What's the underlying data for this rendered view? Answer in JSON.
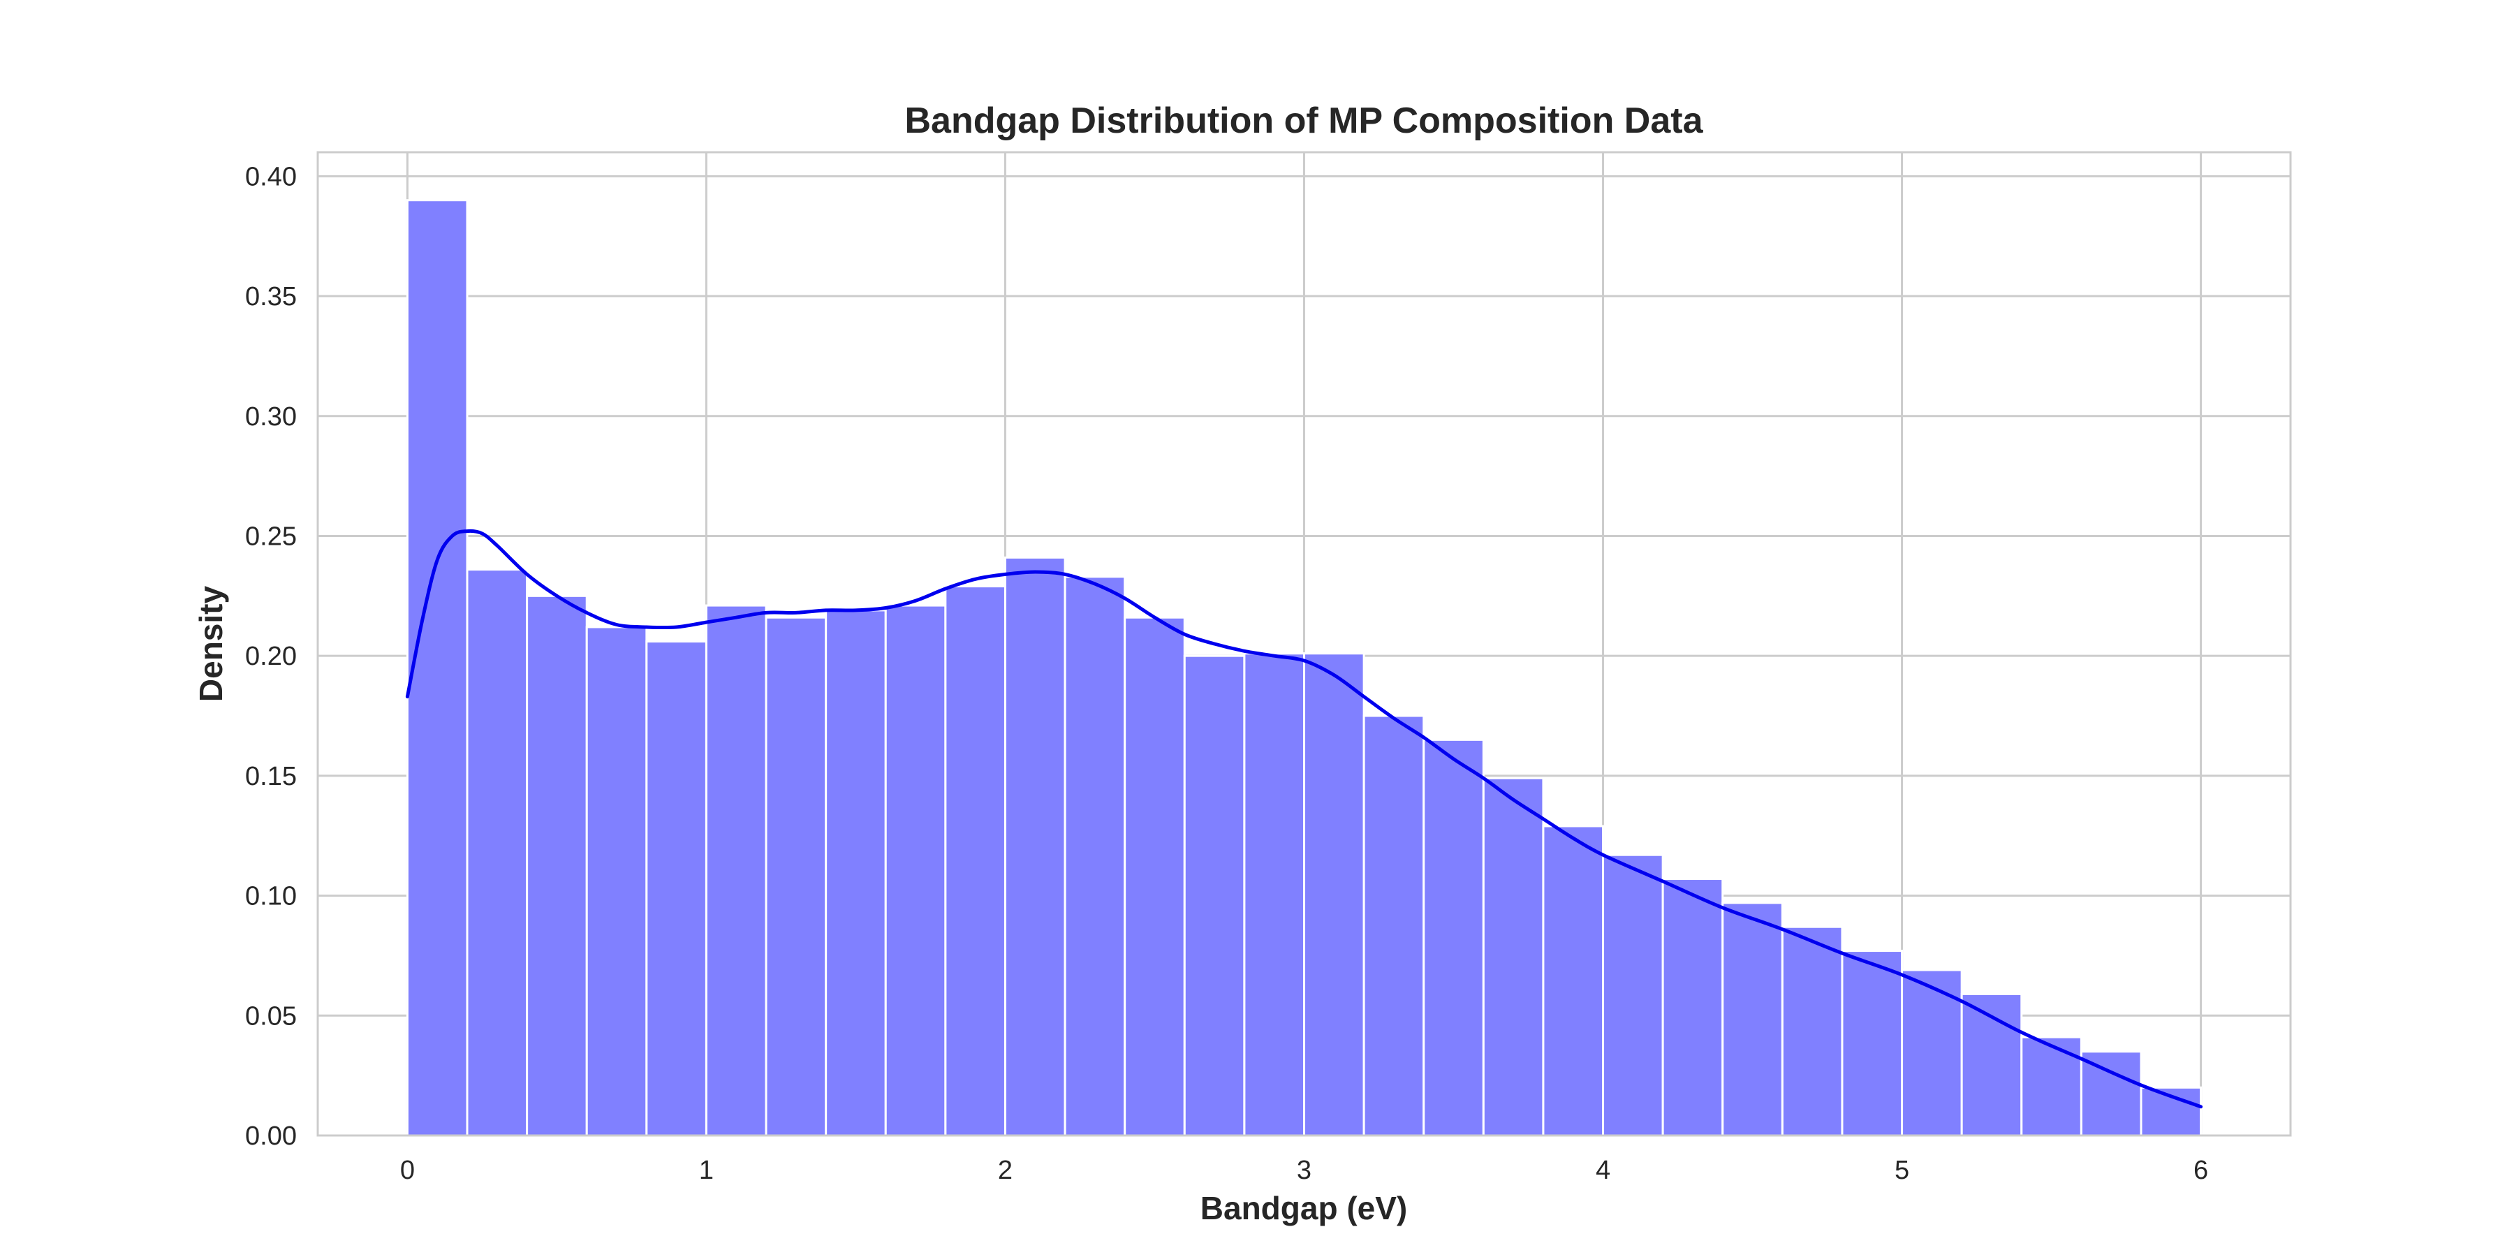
{
  "chart_data": {
    "type": "histogram",
    "title": "Bandgap Distribution of MP Composition Data",
    "xlabel": "Bandgap (eV)",
    "ylabel": "Density",
    "xlim": [
      -0.3,
      6.3
    ],
    "ylim": [
      0,
      0.41
    ],
    "xticks": [
      0,
      1,
      2,
      3,
      4,
      5,
      6
    ],
    "xtick_labels": [
      "0",
      "1",
      "2",
      "3",
      "4",
      "5",
      "6"
    ],
    "yticks": [
      0,
      0.05,
      0.1,
      0.15,
      0.2,
      0.25,
      0.3,
      0.35,
      0.4
    ],
    "ytick_labels": [
      "0.00",
      "0.05",
      "0.10",
      "0.15",
      "0.20",
      "0.25",
      "0.30",
      "0.35",
      "0.40"
    ],
    "grid": true,
    "bins": {
      "start": 0,
      "end": 6,
      "count": 30,
      "values": [
        0.39,
        0.236,
        0.225,
        0.212,
        0.206,
        0.221,
        0.216,
        0.219,
        0.221,
        0.229,
        0.241,
        0.233,
        0.216,
        0.2,
        0.201,
        0.201,
        0.175,
        0.165,
        0.149,
        0.129,
        0.117,
        0.107,
        0.097,
        0.087,
        0.077,
        0.069,
        0.059,
        0.041,
        0.035,
        0.02
      ]
    },
    "kde": {
      "x": [
        0.0,
        0.05,
        0.1,
        0.15,
        0.2,
        0.25,
        0.3,
        0.4,
        0.5,
        0.6,
        0.7,
        0.8,
        0.9,
        1.0,
        1.1,
        1.2,
        1.3,
        1.4,
        1.5,
        1.6,
        1.7,
        1.8,
        1.9,
        2.0,
        2.1,
        2.2,
        2.3,
        2.4,
        2.5,
        2.6,
        2.7,
        2.8,
        2.9,
        3.0,
        3.1,
        3.2,
        3.3,
        3.4,
        3.5,
        3.6,
        3.7,
        3.8,
        3.9,
        4.0,
        4.2,
        4.4,
        4.6,
        4.8,
        5.0,
        5.2,
        5.4,
        5.6,
        5.8,
        6.0
      ],
      "y": [
        0.183,
        0.215,
        0.24,
        0.25,
        0.252,
        0.251,
        0.246,
        0.234,
        0.225,
        0.218,
        0.213,
        0.212,
        0.212,
        0.214,
        0.216,
        0.218,
        0.218,
        0.219,
        0.219,
        0.22,
        0.223,
        0.228,
        0.232,
        0.234,
        0.235,
        0.234,
        0.23,
        0.224,
        0.216,
        0.209,
        0.205,
        0.202,
        0.2,
        0.198,
        0.192,
        0.183,
        0.174,
        0.166,
        0.157,
        0.149,
        0.14,
        0.132,
        0.124,
        0.117,
        0.106,
        0.095,
        0.086,
        0.076,
        0.067,
        0.056,
        0.043,
        0.032,
        0.021,
        0.012
      ]
    },
    "colors": {
      "bar_fill": "#8080ff",
      "kde_line": "#0000ee",
      "grid": "#cccccc",
      "text": "#262626"
    }
  }
}
